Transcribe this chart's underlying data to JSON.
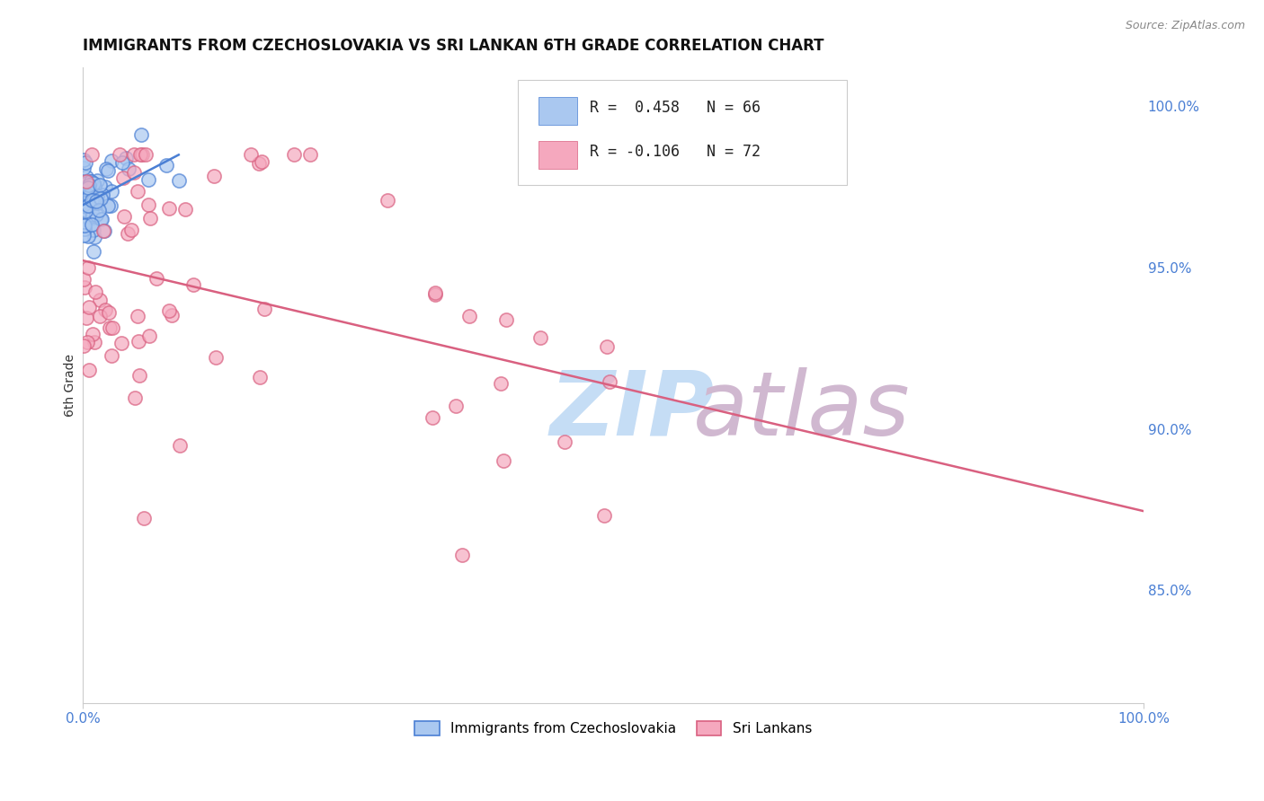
{
  "title": "IMMIGRANTS FROM CZECHOSLOVAKIA VS SRI LANKAN 6TH GRADE CORRELATION CHART",
  "source_text": "Source: ZipAtlas.com",
  "ylabel": "6th Grade",
  "xlim": [
    0.0,
    1.0
  ],
  "ylim": [
    0.815,
    1.012
  ],
  "ytick_labels": [
    "85.0%",
    "90.0%",
    "95.0%",
    "100.0%"
  ],
  "ytick_positions": [
    0.85,
    0.9,
    0.95,
    1.0
  ],
  "legend_r1": "R =  0.458",
  "legend_n1": "N = 66",
  "legend_r2": "R = -0.106",
  "legend_n2": "N = 72",
  "series1_color": "#aac8f0",
  "series2_color": "#f5a8be",
  "line1_color": "#4a7fd4",
  "line2_color": "#d96080",
  "background_color": "#ffffff",
  "grid_color": "#d8d8d8",
  "title_fontsize": 12,
  "tick_label_color": "#4a7fd4",
  "watermark_zip_color": "#c5ddf5",
  "watermark_atlas_color": "#d0b8d0"
}
